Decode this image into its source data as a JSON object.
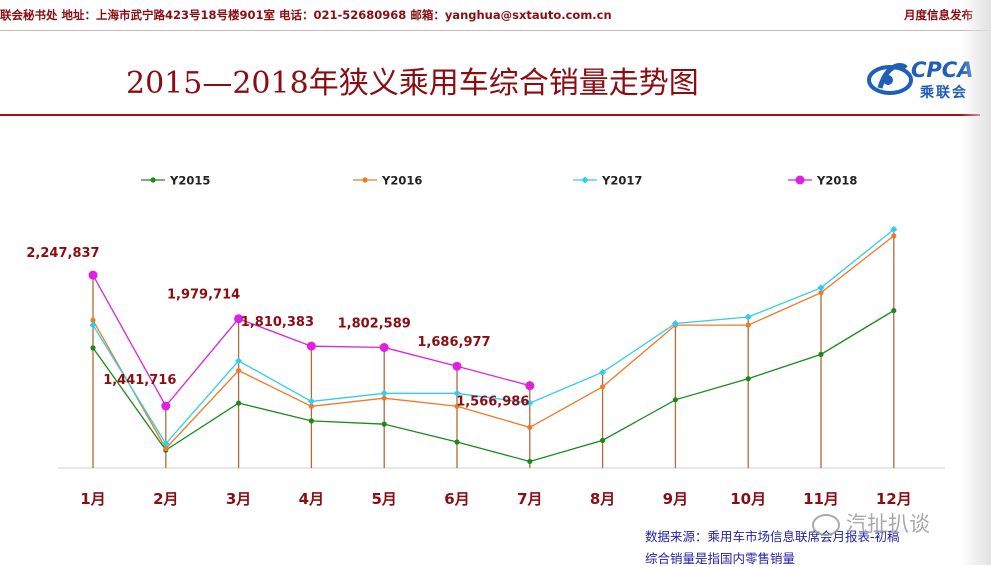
{
  "header": {
    "left_text": "联会秘书处  地址：上海市武宁路423号18号楼901室  电话：021-52680968  邮箱：yanghua@sxtauto.com.cn",
    "right_text": "月度信息发布"
  },
  "logo": {
    "text": "CPCA",
    "subtext": "乘联会",
    "icon": "cpca-logo-icon"
  },
  "colors": {
    "Y2015": "#1b8a1b",
    "Y2016": "#f07a26",
    "Y2017": "#33ccee",
    "Y2018": "#e020e0",
    "accent": "#8b0d12",
    "droplines": "#b06a3a"
  },
  "chart_data": {
    "type": "line",
    "title": "2015—2018年狭义乘用车综合销量走势图",
    "xlabel": "",
    "ylabel": "",
    "grid": false,
    "legend": "top",
    "categories": [
      "1月",
      "2月",
      "3月",
      "4月",
      "5月",
      "6月",
      "7月",
      "8月",
      "9月",
      "10月",
      "11月",
      "12月"
    ],
    "ylim": [
      0,
      3000000
    ],
    "series": [
      {
        "name": "Y2015",
        "values": [
          1800000,
          1170000,
          1460000,
          1350000,
          1330000,
          1220000,
          1100000,
          1230000,
          1480000,
          1610000,
          1760000,
          2030000
        ]
      },
      {
        "name": "Y2016",
        "values": [
          1970000,
          1180000,
          1660000,
          1440000,
          1490000,
          1440000,
          1310000,
          1560000,
          1940000,
          1940000,
          2140000,
          2490000
        ]
      },
      {
        "name": "Y2017",
        "values": [
          1940000,
          1210000,
          1720000,
          1470000,
          1520000,
          1520000,
          1460000,
          1650000,
          1950000,
          1990000,
          2170000,
          2530000
        ]
      },
      {
        "name": "Y2018",
        "values": [
          2247837,
          1441716,
          1979714,
          1810383,
          1802589,
          1686977,
          1566986,
          null,
          null,
          null,
          null,
          null
        ]
      }
    ],
    "data_labels": [
      {
        "category": "1月",
        "text": "2,247,837"
      },
      {
        "category": "2月",
        "text": "1,441,716"
      },
      {
        "category": "3月",
        "text": "1,979,714"
      },
      {
        "category": "4月",
        "text": "1,810,383"
      },
      {
        "category": "5月",
        "text": "1,802,589"
      },
      {
        "category": "6月",
        "text": "1,686,977"
      },
      {
        "category": "7月",
        "text": "1,566,986"
      }
    ]
  },
  "footer": {
    "source": "数据来源：乘用车市场信息联席会月报表-初稿",
    "note": "综合销量是指国内零售销量",
    "watermark": "汽扯扒谈"
  }
}
